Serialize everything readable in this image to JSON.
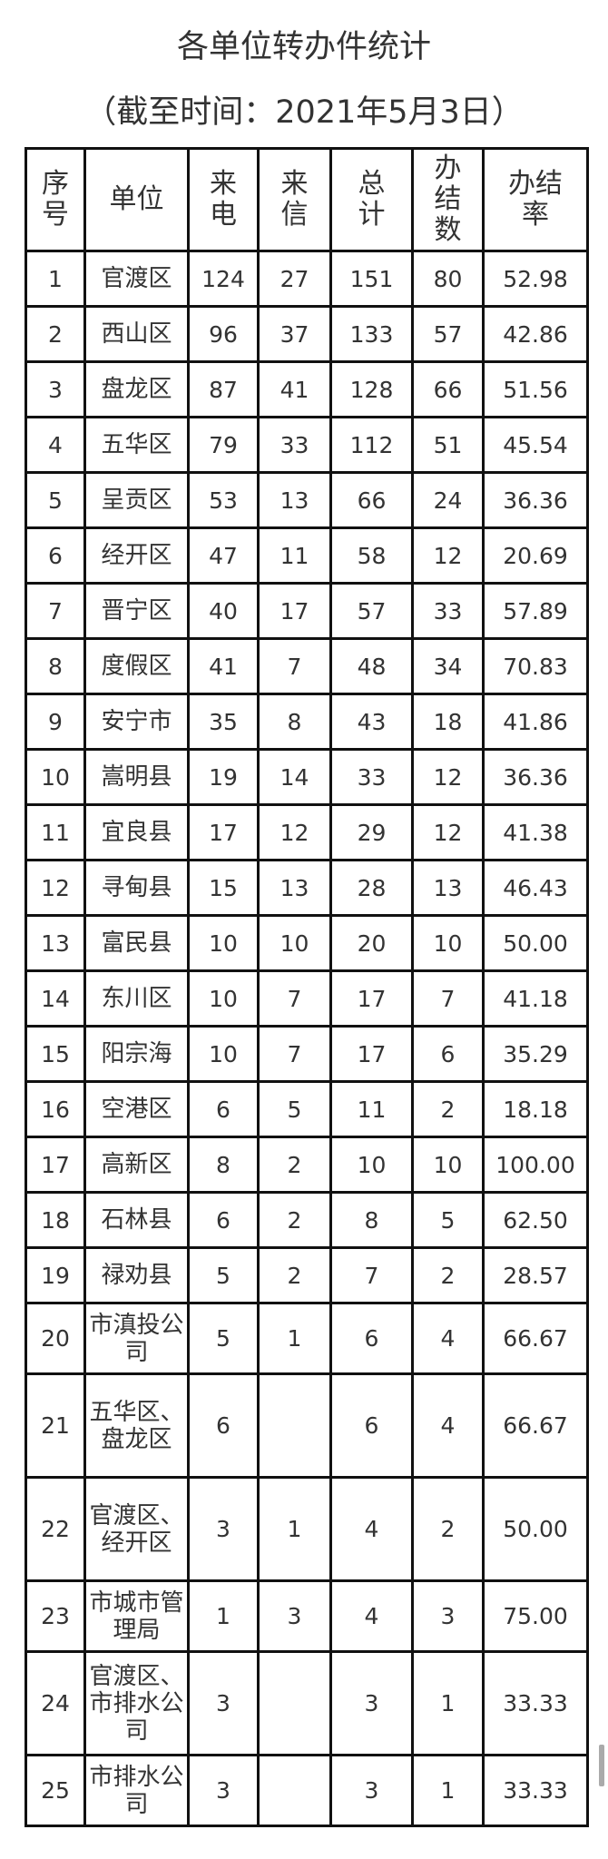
{
  "title": "各单位转办件统计",
  "subtitle": "（截至时间：2021年5月3日）",
  "table": {
    "headers": [
      "序号",
      "单位",
      "来电",
      "来信",
      "总计",
      "办结数",
      "办结率"
    ],
    "rows": [
      [
        "1",
        "官渡区",
        "124",
        "27",
        "151",
        "80",
        "52.98"
      ],
      [
        "2",
        "西山区",
        "96",
        "37",
        "133",
        "57",
        "42.86"
      ],
      [
        "3",
        "盘龙区",
        "87",
        "41",
        "128",
        "66",
        "51.56"
      ],
      [
        "4",
        "五华区",
        "79",
        "33",
        "112",
        "51",
        "45.54"
      ],
      [
        "5",
        "呈贡区",
        "53",
        "13",
        "66",
        "24",
        "36.36"
      ],
      [
        "6",
        "经开区",
        "47",
        "11",
        "58",
        "12",
        "20.69"
      ],
      [
        "7",
        "晋宁区",
        "40",
        "17",
        "57",
        "33",
        "57.89"
      ],
      [
        "8",
        "度假区",
        "41",
        "7",
        "48",
        "34",
        "70.83"
      ],
      [
        "9",
        "安宁市",
        "35",
        "8",
        "43",
        "18",
        "41.86"
      ],
      [
        "10",
        "嵩明县",
        "19",
        "14",
        "33",
        "12",
        "36.36"
      ],
      [
        "11",
        "宜良县",
        "17",
        "12",
        "29",
        "12",
        "41.38"
      ],
      [
        "12",
        "寻甸县",
        "15",
        "13",
        "28",
        "13",
        "46.43"
      ],
      [
        "13",
        "富民县",
        "10",
        "10",
        "20",
        "10",
        "50.00"
      ],
      [
        "14",
        "东川区",
        "10",
        "7",
        "17",
        "7",
        "41.18"
      ],
      [
        "15",
        "阳宗海",
        "10",
        "7",
        "17",
        "6",
        "35.29"
      ],
      [
        "16",
        "空港区",
        "6",
        "5",
        "11",
        "2",
        "18.18"
      ],
      [
        "17",
        "高新区",
        "8",
        "2",
        "10",
        "10",
        "100.00"
      ],
      [
        "18",
        "石林县",
        "6",
        "2",
        "8",
        "5",
        "62.50"
      ],
      [
        "19",
        "禄劝县",
        "5",
        "2",
        "7",
        "2",
        "28.57"
      ],
      [
        "20",
        "市滇投公司",
        "5",
        "1",
        "6",
        "4",
        "66.67"
      ],
      [
        "21",
        "五华区、盘龙区",
        "6",
        "",
        "6",
        "4",
        "66.67"
      ],
      [
        "22",
        "官渡区、经开区",
        "3",
        "1",
        "4",
        "2",
        "50.00"
      ],
      [
        "23",
        "市城市管理局",
        "1",
        "3",
        "4",
        "3",
        "75.00"
      ],
      [
        "24",
        "官渡区、市排水公司",
        "3",
        "",
        "3",
        "1",
        "33.33"
      ],
      [
        "25",
        "市排水公司",
        "3",
        "",
        "3",
        "1",
        "33.33"
      ]
    ]
  }
}
